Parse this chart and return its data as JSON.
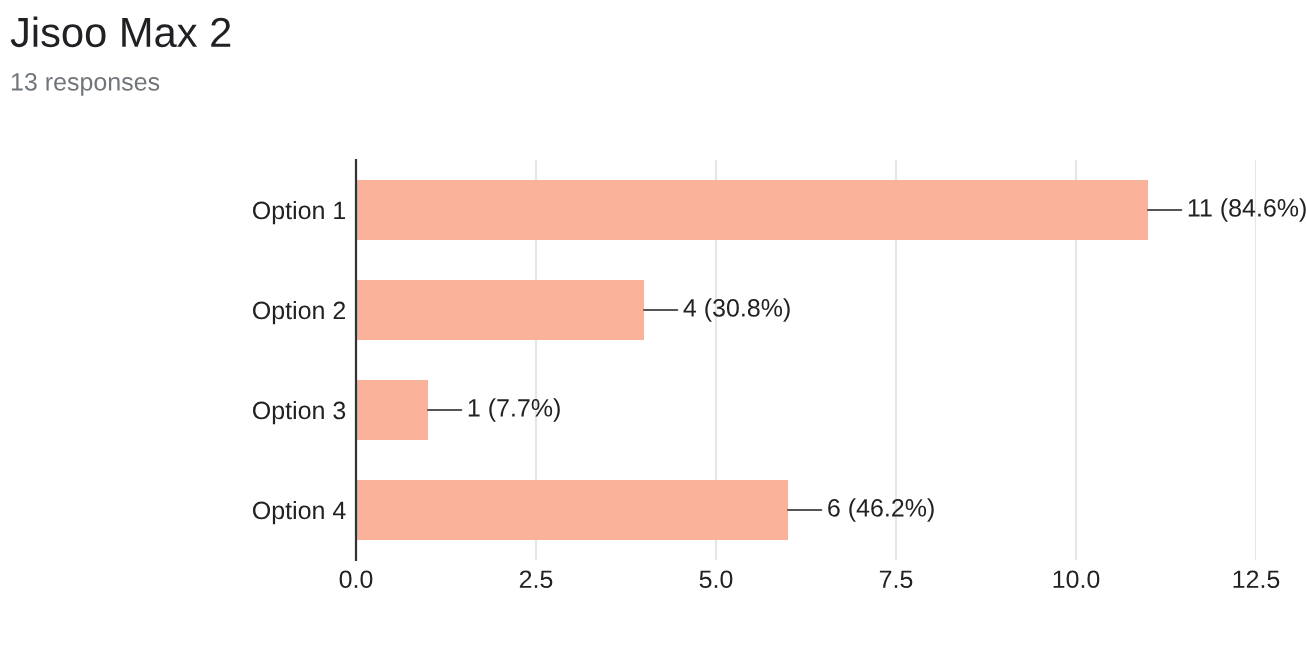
{
  "chart_data": {
    "type": "bar",
    "orientation": "horizontal",
    "title": "Jisoo Max 2",
    "subtitle": "13 responses",
    "categories": [
      "Option 1",
      "Option 2",
      "Option 3",
      "Option 4"
    ],
    "values": [
      11,
      4,
      1,
      6
    ],
    "value_labels": [
      "11 (84.6%)",
      "4 (30.8%)",
      "1 (7.7%)",
      "6 (46.2%)"
    ],
    "color": "#fbb29b",
    "xlim": [
      0,
      12.5
    ],
    "xticks": [
      {
        "value": 0,
        "label": "0.0"
      },
      {
        "value": 2.5,
        "label": "2.5"
      },
      {
        "value": 5,
        "label": "5.0"
      },
      {
        "value": 7.5,
        "label": "7.5"
      },
      {
        "value": 10,
        "label": "10.0"
      },
      {
        "value": 12.5,
        "label": "12.5"
      }
    ],
    "grid": "x"
  }
}
